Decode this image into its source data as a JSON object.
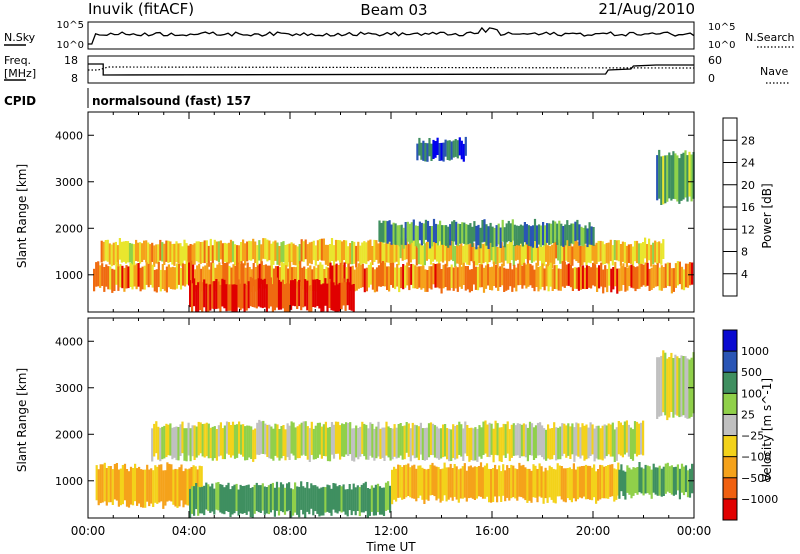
{
  "header": {
    "station": "Inuvik (fitACF)",
    "beam": "Beam 03",
    "date": "21/Aug/2010"
  },
  "noise_panel": {
    "left_label": "N.Sky",
    "right_label": "N.Search",
    "left_ticks": [
      "10^5",
      "10^0"
    ],
    "right_ticks": [
      "10^5",
      "10^0"
    ]
  },
  "freq_panel": {
    "left_label_line1": "Freq.",
    "left_label_line2": "[MHz]",
    "left_ticks": [
      "18",
      "8"
    ],
    "right_label": "Nave",
    "right_ticks": [
      "60",
      "0"
    ]
  },
  "cpid": {
    "label": "CPID",
    "value": "normalsound (fast) 157"
  },
  "x_axis": {
    "label": "Time UT",
    "ticks": [
      "00:00",
      "04:00",
      "08:00",
      "12:00",
      "16:00",
      "20:00",
      "00:00"
    ]
  },
  "colors": {
    "power": [
      "#0000ee",
      "#2a55b5",
      "#3f8f60",
      "#8fd24a",
      "#e9e62e",
      "#f5a21b",
      "#ef6a10",
      "#e00000"
    ],
    "velocity": [
      "#e00000",
      "#f06010",
      "#f5a21b",
      "#f3d21a",
      "#c0c0c0",
      "#90d04a",
      "#3f8f60",
      "#2a55b5",
      "#0a0ad0"
    ]
  },
  "chart_data": [
    {
      "type": "heatmap",
      "panel": "power",
      "ylabel": "Slant Range [km]",
      "yticks": [
        "1000",
        "2000",
        "3000",
        "4000"
      ],
      "ylim": [
        200,
        4500
      ],
      "xlim_hours": [
        0,
        24
      ],
      "colorbar_label": "Power [dB]",
      "colorbar_ticks": [
        "4",
        "8",
        "12",
        "16",
        "20",
        "24",
        "28"
      ],
      "colorbar_range": [
        0,
        32
      ],
      "bands": [
        {
          "t": [
            0.5,
            22.8
          ],
          "range": [
            1250,
            1700
          ],
          "value": 20
        },
        {
          "t": [
            0.2,
            23.9
          ],
          "range": [
            700,
            1200
          ],
          "value": 24
        },
        {
          "t": [
            4.0,
            10.5
          ],
          "range": [
            250,
            850
          ],
          "value": 29
        },
        {
          "t": [
            11.5,
            20.0
          ],
          "range": [
            1650,
            2100
          ],
          "value": 10
        },
        {
          "t": [
            22.5,
            24.0
          ],
          "range": [
            2600,
            3600
          ],
          "value": 12
        },
        {
          "t": [
            13.0,
            15.0
          ],
          "range": [
            3500,
            3900
          ],
          "value": 6
        }
      ]
    },
    {
      "type": "heatmap",
      "panel": "velocity",
      "ylabel": "Slant Range [km]",
      "yticks": [
        "1000",
        "2000",
        "3000",
        "4000"
      ],
      "ylim": [
        200,
        4500
      ],
      "xlim_hours": [
        0,
        24
      ],
      "colorbar_label": "Velocity [m s^-1]",
      "colorbar_ticks": [
        "1000",
        "500",
        "100",
        "25",
        "−25",
        "−100",
        "−500",
        "−1000"
      ],
      "bands": [
        {
          "t": [
            2.5,
            22.0
          ],
          "range": [
            1500,
            2200
          ],
          "value": 0
        },
        {
          "t": [
            0.3,
            4.5
          ],
          "range": [
            500,
            1300
          ],
          "value": -120
        },
        {
          "t": [
            4.0,
            12.0
          ],
          "range": [
            300,
            900
          ],
          "value": 150
        },
        {
          "t": [
            12.0,
            21.0
          ],
          "range": [
            600,
            1300
          ],
          "value": -110
        },
        {
          "t": [
            21.0,
            23.9
          ],
          "range": [
            700,
            1300
          ],
          "value": 120
        },
        {
          "t": [
            22.5,
            24.0
          ],
          "range": [
            2400,
            3700
          ],
          "value": 0
        }
      ]
    }
  ]
}
